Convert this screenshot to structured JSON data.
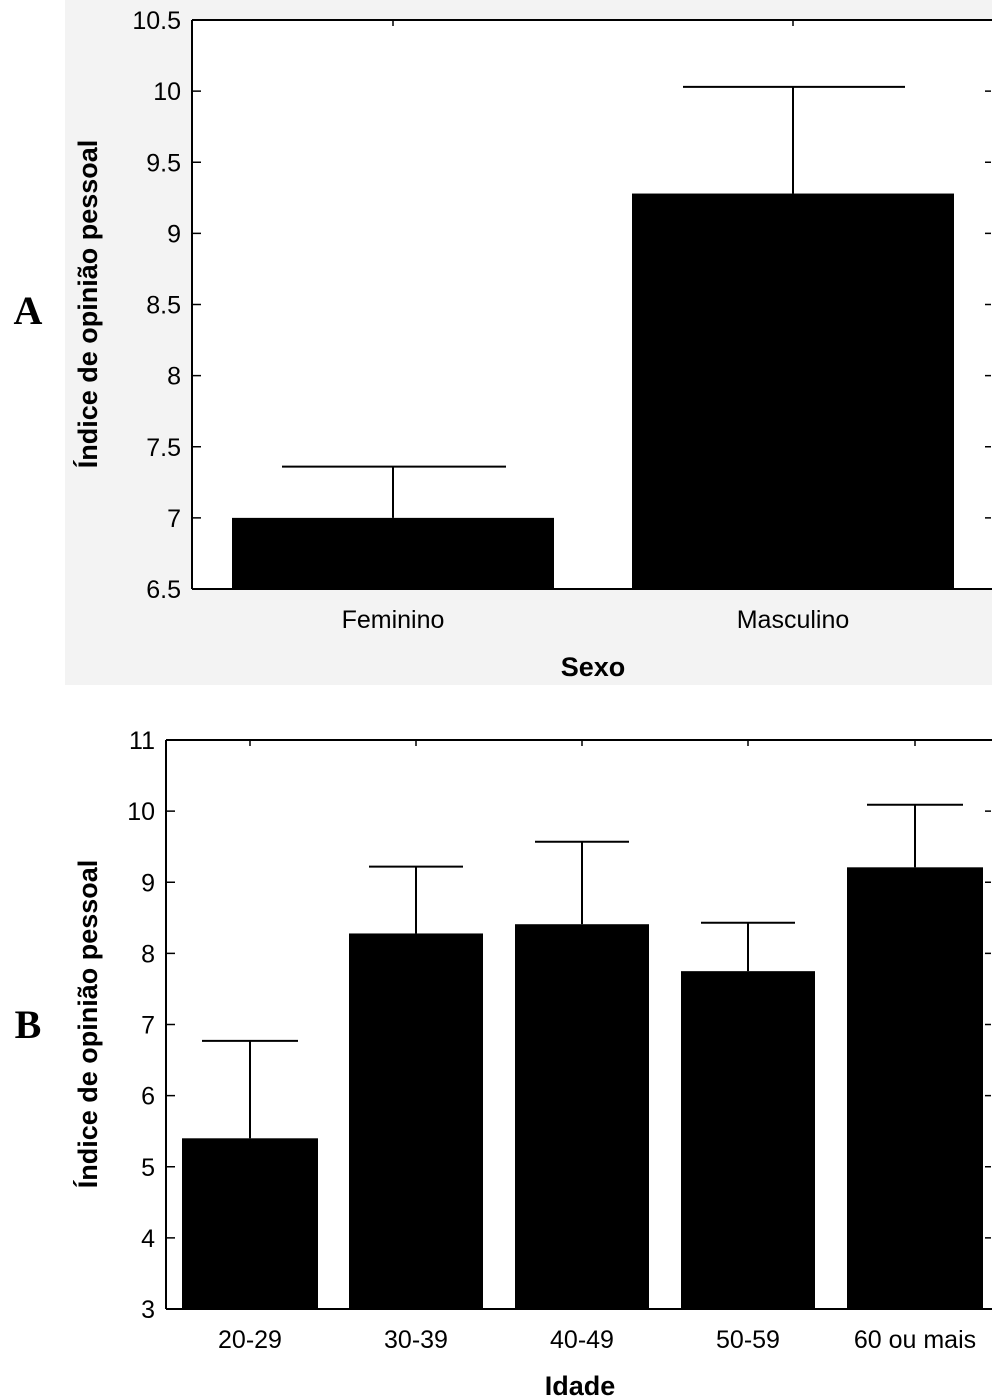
{
  "chart_data": [
    {
      "panel_label": "A",
      "type": "bar",
      "xlabel": "Sexo",
      "ylabel": "Índice de opinião pessoal",
      "ylim": [
        6.5,
        10.5
      ],
      "yticks": [
        "6.5",
        "7",
        "7.5",
        "8",
        "8.5",
        "9",
        "9.5",
        "10",
        "10.5"
      ],
      "categories": [
        "Feminino",
        "Masculino"
      ],
      "values": [
        7.0,
        9.28
      ],
      "error_upper": [
        7.36,
        10.03
      ],
      "bar_color": "#000000"
    },
    {
      "panel_label": "B",
      "type": "bar",
      "xlabel": "Idade",
      "ylabel": "Índice de opinião pessoal",
      "ylim": [
        3,
        11
      ],
      "yticks": [
        "3",
        "4",
        "5",
        "6",
        "7",
        "8",
        "9",
        "10",
        "11"
      ],
      "categories": [
        "20-29",
        "30-39",
        "40-49",
        "50-59",
        "60 ou mais"
      ],
      "values": [
        5.4,
        8.28,
        8.41,
        7.75,
        9.21
      ],
      "error_upper": [
        6.77,
        9.22,
        9.57,
        8.43,
        10.09
      ],
      "bar_color": "#000000"
    }
  ]
}
